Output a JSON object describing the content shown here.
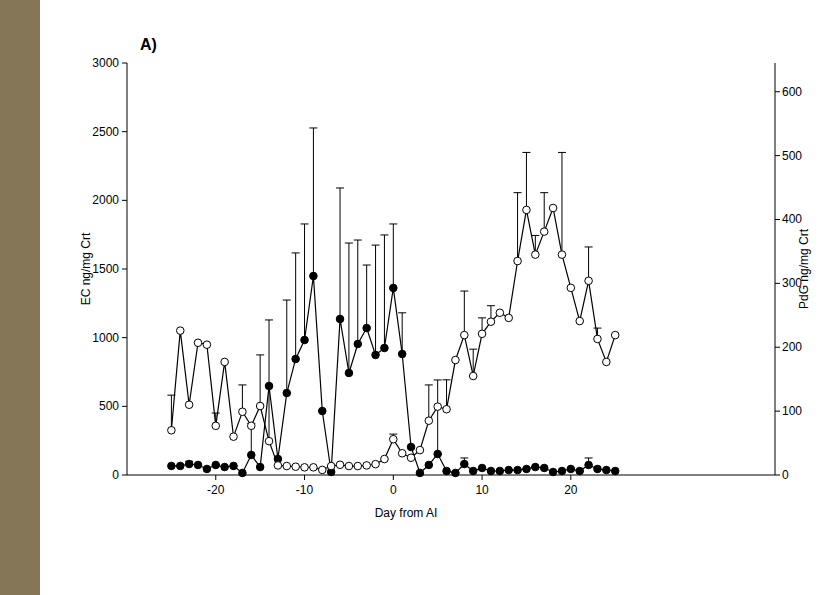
{
  "chart_data": {
    "type": "line",
    "panel_label": "A)",
    "x_label": "Day from AI",
    "y_label": "EC ng/mg Crt",
    "y2_label": "PdG ng/mg Crt",
    "x": [
      -25,
      -24,
      -23,
      -22,
      -21,
      -20,
      -19,
      -18,
      -17,
      -16,
      -15,
      -14,
      -13,
      -12,
      -11,
      -10,
      -9,
      -8,
      -7,
      -6,
      -5,
      -4,
      -3,
      -2,
      -1,
      0,
      1,
      2,
      3,
      4,
      5,
      6,
      7,
      8,
      9,
      10,
      11,
      12,
      13,
      14,
      15,
      16,
      17,
      18,
      19,
      20,
      21,
      22,
      23,
      24,
      25
    ],
    "xlim": [
      -30,
      43
    ],
    "xticks": [
      -20,
      -10,
      0,
      10,
      20
    ],
    "ylim": [
      0,
      3000
    ],
    "yticks": [
      0,
      500,
      1000,
      1500,
      2000,
      2500,
      3000
    ],
    "y2lim": [
      0,
      645
    ],
    "y2ticks": [
      0,
      100,
      200,
      300,
      400,
      500,
      600
    ],
    "series": [
      {
        "color": "#000000",
        "marker": "filled",
        "line_style": "solid",
        "values": [
          66,
          66,
          80,
          73,
          44,
          73,
          58,
          66,
          15,
          146,
          58,
          648,
          117,
          597,
          845,
          983,
          1449,
          466,
          22,
          1136,
          743,
          954,
          1070,
          874,
          925,
          1362,
          881,
          204,
          15,
          73,
          153,
          29,
          15,
          80,
          29,
          51,
          29,
          29,
          36,
          36,
          44,
          58,
          51,
          22,
          29,
          44,
          29,
          73,
          44,
          36,
          29
        ],
        "errors": [
          null,
          null,
          20,
          null,
          null,
          null,
          null,
          null,
          null,
          230,
          null,
          481,
          null,
          677,
          772,
          845,
          1078,
          null,
          null,
          954,
          946,
          757,
          459,
          800,
          823,
          466,
          300,
          null,
          null,
          null,
          539,
          null,
          null,
          44,
          null,
          null,
          null,
          null,
          null,
          null,
          null,
          null,
          null,
          null,
          null,
          null,
          null,
          51,
          null,
          null,
          null
        ]
      },
      {
        "color": "#000000",
        "marker": "open",
        "line_style": "solid",
        "axis": "y2",
        "values": [
          70,
          226,
          110,
          207,
          204,
          77,
          177,
          60,
          99,
          77,
          108,
          53,
          15,
          14,
          13,
          12,
          12,
          8,
          14,
          16,
          14,
          14,
          15,
          17,
          25,
          56,
          34,
          27,
          39,
          85,
          107,
          103,
          180,
          219,
          155,
          221,
          240,
          254,
          246,
          335,
          415,
          345,
          381,
          418,
          345,
          293,
          241,
          304,
          213,
          177,
          219
        ],
        "errors": [
          55,
          null,
          null,
          null,
          null,
          20,
          null,
          null,
          42,
          null,
          80,
          88,
          null,
          null,
          null,
          null,
          null,
          null,
          null,
          null,
          null,
          null,
          null,
          null,
          null,
          8,
          null,
          null,
          null,
          56,
          null,
          46,
          null,
          69,
          42,
          25,
          25,
          null,
          null,
          107,
          90,
          30,
          61,
          null,
          160,
          null,
          null,
          53,
          17,
          null,
          null
        ]
      }
    ]
  }
}
